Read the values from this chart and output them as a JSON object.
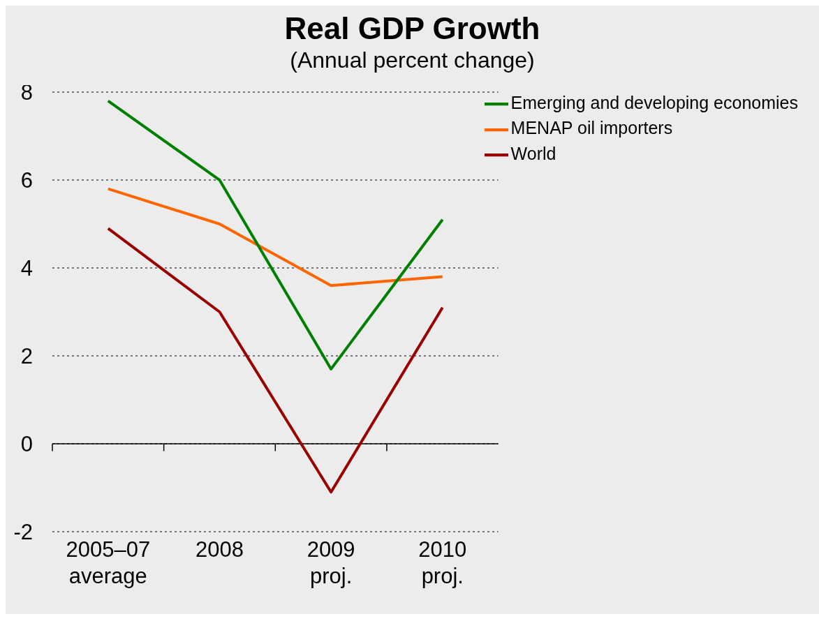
{
  "chart_data": {
    "type": "line",
    "title": "Real GDP Growth",
    "subtitle": "(Annual percent change)",
    "categories": [
      "2005–07 average",
      "2008",
      "2009 proj.",
      "2010 proj."
    ],
    "series": [
      {
        "name": "MENAP oil importers",
        "color": "#ff6600",
        "values": [
          5.8,
          5.0,
          3.6,
          3.8
        ]
      },
      {
        "name": "Emerging and developing economies",
        "color": "#008000",
        "values": [
          7.8,
          6.0,
          1.7,
          5.1
        ]
      },
      {
        "name": "World",
        "color": "#990000",
        "values": [
          4.9,
          3.0,
          -1.1,
          3.1
        ]
      }
    ],
    "ylim": [
      -2,
      8
    ],
    "yticks": [
      -2,
      0,
      2,
      4,
      6,
      8
    ],
    "grid": "y",
    "legend": "top right",
    "marker": "none",
    "line_style": "solid"
  }
}
